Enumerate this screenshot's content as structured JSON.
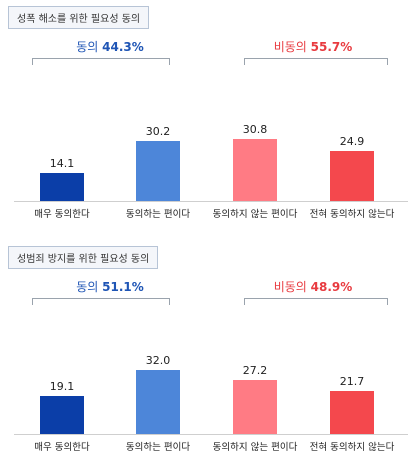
{
  "chart_data": [
    {
      "type": "bar",
      "title": "성폭 해소를 위한 필요성 동의",
      "categories": [
        "매우 동의한다",
        "동의하는 편이다",
        "동의하지 않는 편이다",
        "전혀 동의하지 않는다"
      ],
      "values": [
        14.1,
        30.2,
        30.8,
        24.9
      ],
      "colors": [
        "#0b3ea8",
        "#4d86d9",
        "#ff7b84",
        "#f4484d"
      ],
      "groups": [
        {
          "label": "동의",
          "pct": "44.3%",
          "color": "#1f55b5"
        },
        {
          "label": "비동의",
          "pct": "55.7%",
          "color": "#e83b40"
        }
      ],
      "ylim": [
        0,
        40
      ]
    },
    {
      "type": "bar",
      "title": "성범죄 방지를 위한 필요성 동의",
      "categories": [
        "매우 동의한다",
        "동의하는 편이다",
        "동의하지 않는 편이다",
        "전혀 동의하지 않는다"
      ],
      "values": [
        19.1,
        32.0,
        27.2,
        21.7
      ],
      "colors": [
        "#0b3ea8",
        "#4d86d9",
        "#ff7b84",
        "#f4484d"
      ],
      "groups": [
        {
          "label": "동의",
          "pct": "51.1%",
          "color": "#1f55b5"
        },
        {
          "label": "비동의",
          "pct": "48.9%",
          "color": "#e83b40"
        }
      ],
      "ylim": [
        0,
        40
      ]
    }
  ],
  "value_labels": [
    [
      "14.1",
      "30.2",
      "30.8",
      "24.9"
    ],
    [
      "19.1",
      "32.0",
      "27.2",
      "21.7"
    ]
  ]
}
